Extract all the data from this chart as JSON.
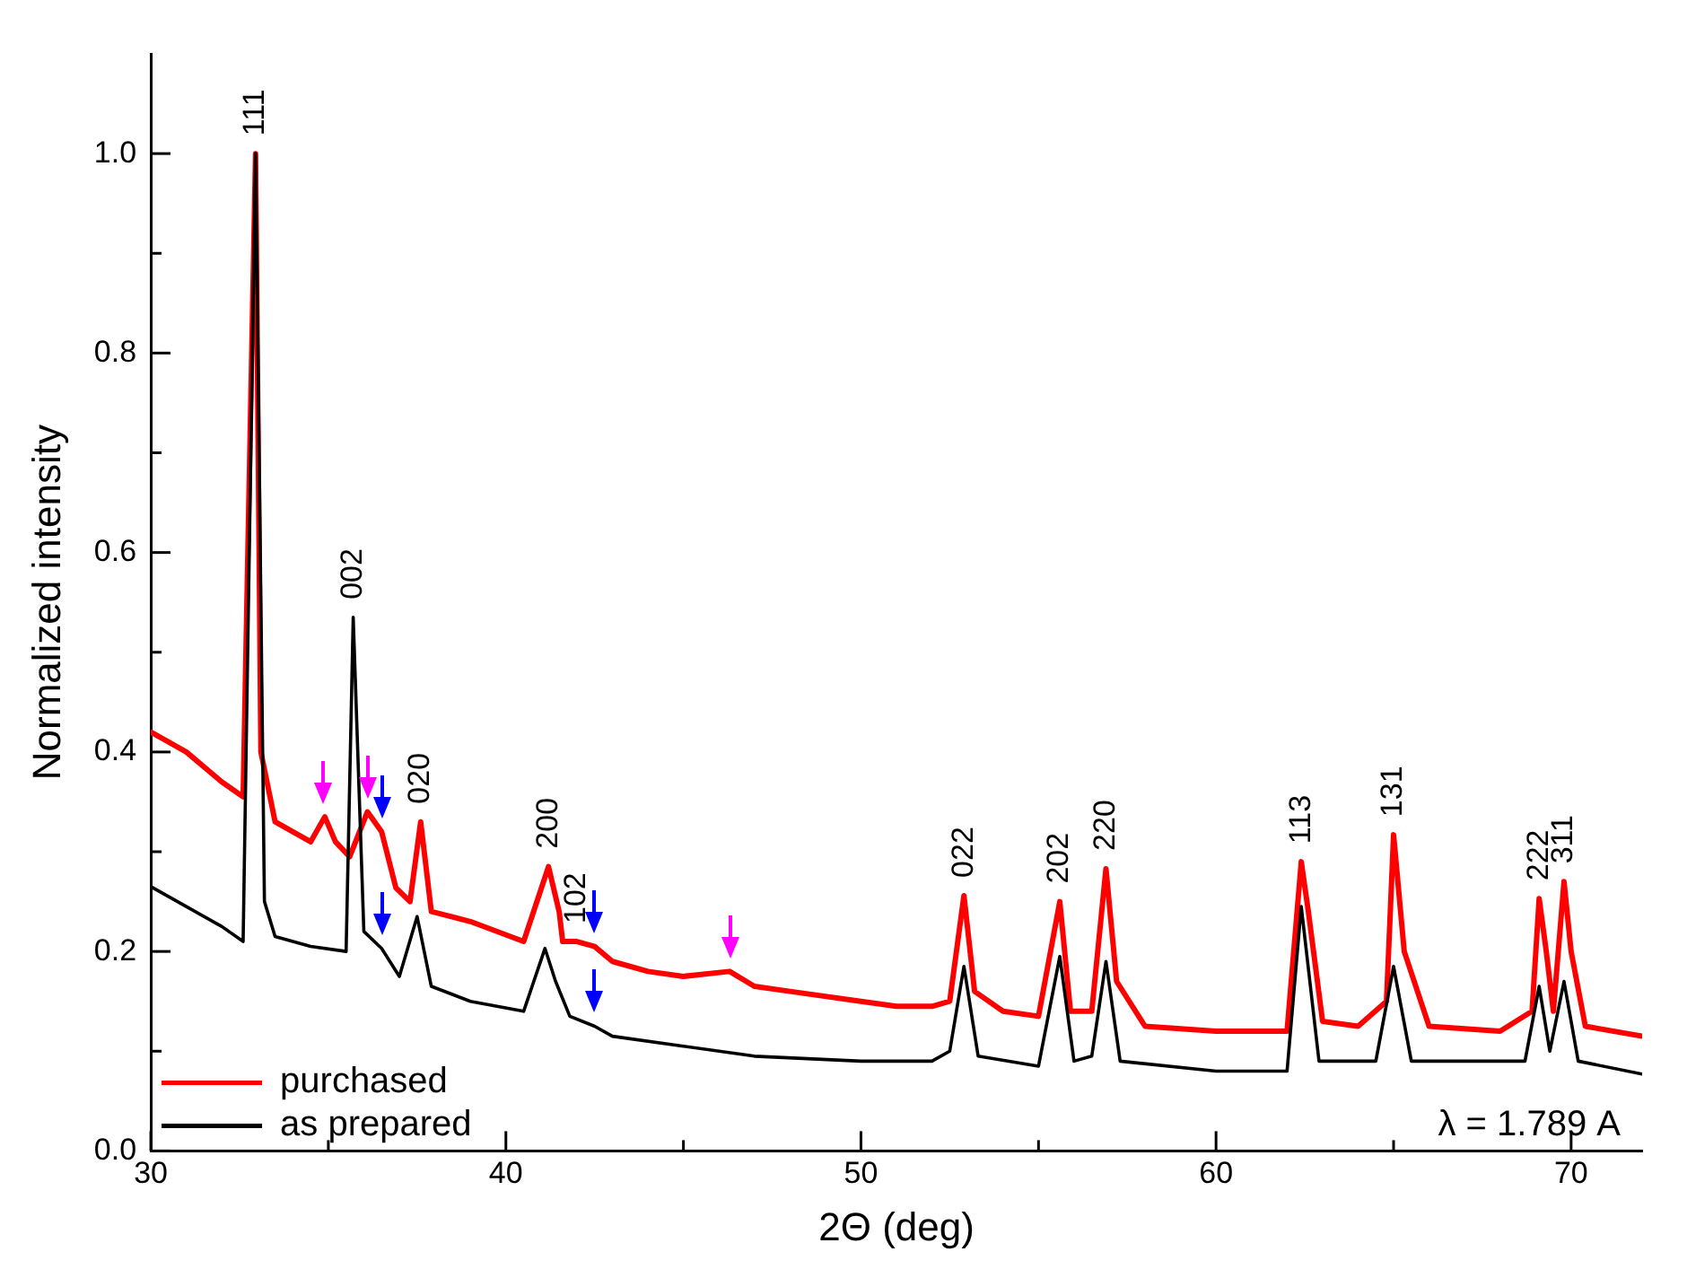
{
  "chart_data": {
    "type": "line",
    "xlabel": "2Θ (deg)",
    "ylabel": "Normalized intensity",
    "xlim": [
      30,
      72
    ],
    "ylim": [
      0,
      1.1
    ],
    "xticks": [
      30,
      {
        "value": 35,
        "label": null
      },
      40,
      {
        "value": 45,
        "label": null
      },
      50,
      {
        "value": 55,
        "label": null
      },
      60,
      {
        "value": 65,
        "label": null
      },
      70
    ],
    "yticks": [
      {
        "value": 0,
        "label": "0.0"
      },
      {
        "value": 0.1,
        "label": null
      },
      {
        "value": 0.2,
        "label": "0.2"
      },
      {
        "value": 0.3,
        "label": null
      },
      {
        "value": 0.4,
        "label": "0.4"
      },
      {
        "value": 0.5,
        "label": null
      },
      {
        "value": 0.6,
        "label": "0.6"
      },
      {
        "value": 0.7,
        "label": null
      },
      {
        "value": 0.8,
        "label": "0.8"
      },
      {
        "value": 0.9,
        "label": null
      },
      {
        "value": 1.0,
        "label": "1.0"
      }
    ],
    "grid": false,
    "legend": "bottom left",
    "marker": "none",
    "line_style": "solid",
    "series": [
      {
        "name": "purchased",
        "color": "#ff0000",
        "x": [
          30,
          31,
          32,
          32.6,
          32.95,
          33.1,
          33.5,
          34.5,
          34.9,
          35.2,
          35.6,
          36.1,
          36.5,
          36.9,
          37.3,
          37.6,
          37.9,
          39,
          40.5,
          41.2,
          41.5,
          41.6,
          42.0,
          42.5,
          43,
          44,
          45,
          46.3,
          47,
          48,
          50,
          51,
          52,
          52.5,
          52.9,
          53.2,
          54,
          55,
          55.6,
          55.9,
          56.5,
          56.9,
          57.2,
          58,
          60,
          62,
          62.4,
          62.6,
          63,
          64,
          64.8,
          65.0,
          65.3,
          66,
          68,
          68.9,
          69.1,
          69.3,
          69.5,
          69.8,
          70.0,
          70.4,
          72
        ],
        "values": [
          0.42,
          0.4,
          0.37,
          0.355,
          1.0,
          0.4,
          0.33,
          0.31,
          0.335,
          0.31,
          0.295,
          0.34,
          0.32,
          0.264,
          0.25,
          0.33,
          0.24,
          0.23,
          0.21,
          0.285,
          0.24,
          0.21,
          0.21,
          0.205,
          0.19,
          0.18,
          0.175,
          0.18,
          0.165,
          0.16,
          0.15,
          0.145,
          0.145,
          0.15,
          0.256,
          0.16,
          0.14,
          0.135,
          0.25,
          0.14,
          0.14,
          0.283,
          0.17,
          0.125,
          0.12,
          0.12,
          0.29,
          0.24,
          0.13,
          0.125,
          0.15,
          0.317,
          0.2,
          0.125,
          0.12,
          0.14,
          0.253,
          0.2,
          0.14,
          0.27,
          0.2,
          0.125,
          0.115
        ]
      },
      {
        "name": "as prepared",
        "color": "#000000",
        "x": [
          30,
          31,
          32,
          32.6,
          32.95,
          33.2,
          33.5,
          34.5,
          35.5,
          35.7,
          36.0,
          36.5,
          37,
          37.5,
          37.9,
          39,
          40.5,
          41.1,
          41.4,
          41.8,
          42.5,
          43,
          45,
          47,
          50,
          52,
          52.5,
          52.9,
          53.3,
          55,
          55.6,
          56,
          56.5,
          56.9,
          57.3,
          60,
          62,
          62.4,
          62.9,
          64.5,
          65.0,
          65.5,
          68.7,
          69.1,
          69.4,
          69.8,
          70.2,
          72
        ],
        "values": [
          0.265,
          0.245,
          0.225,
          0.21,
          1.0,
          0.25,
          0.215,
          0.205,
          0.2,
          0.535,
          0.22,
          0.203,
          0.175,
          0.235,
          0.165,
          0.15,
          0.14,
          0.203,
          0.17,
          0.135,
          0.125,
          0.115,
          0.105,
          0.095,
          0.09,
          0.09,
          0.1,
          0.185,
          0.095,
          0.085,
          0.195,
          0.09,
          0.095,
          0.19,
          0.09,
          0.08,
          0.08,
          0.245,
          0.09,
          0.09,
          0.185,
          0.09,
          0.09,
          0.165,
          0.1,
          0.17,
          0.09,
          0.077
        ]
      }
    ],
    "annotations": [
      {
        "text": "111",
        "x": 32.95,
        "y": 1.0
      },
      {
        "text": "002",
        "x": 35.7,
        "y": 0.535
      },
      {
        "text": "020",
        "x": 37.6,
        "y": 0.33
      },
      {
        "text": "200",
        "x": 41.2,
        "y": 0.285
      },
      {
        "text": "102",
        "x": 42.0,
        "y": 0.21
      },
      {
        "text": "022",
        "x": 52.9,
        "y": 0.256
      },
      {
        "text": "202",
        "x": 55.6,
        "y": 0.25
      },
      {
        "text": "220",
        "x": 56.9,
        "y": 0.283
      },
      {
        "text": "113",
        "x": 62.4,
        "y": 0.29
      },
      {
        "text": "131",
        "x": 65.0,
        "y": 0.317
      },
      {
        "text": "222",
        "x": 69.1,
        "y": 0.253
      },
      {
        "text": "311",
        "x": 69.8,
        "y": 0.27
      },
      "λ = 1.789 A"
    ]
  }
}
